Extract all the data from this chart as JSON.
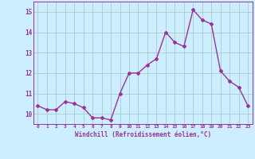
{
  "hours": [
    0,
    1,
    2,
    3,
    4,
    5,
    6,
    7,
    8,
    9,
    10,
    11,
    12,
    13,
    14,
    15,
    16,
    17,
    18,
    19,
    20,
    21,
    22,
    23
  ],
  "values": [
    10.4,
    10.2,
    10.2,
    10.6,
    10.5,
    10.3,
    9.8,
    9.8,
    9.7,
    11.0,
    12.0,
    12.0,
    12.4,
    12.7,
    14.0,
    13.5,
    13.3,
    15.1,
    14.6,
    14.4,
    12.1,
    11.6,
    11.3,
    10.4
  ],
  "line_color": "#993399",
  "marker": "D",
  "marker_size": 2.0,
  "linewidth": 1.0,
  "bg_color": "#cceeff",
  "grid_color": "#aacccc",
  "xlabel": "Windchill (Refroidissement éolien,°C)",
  "xlabel_color": "#993399",
  "tick_color": "#993399",
  "ylim": [
    9.5,
    15.5
  ],
  "yticks": [
    10,
    11,
    12,
    13,
    14,
    15
  ],
  "xlim": [
    -0.5,
    23.5
  ]
}
